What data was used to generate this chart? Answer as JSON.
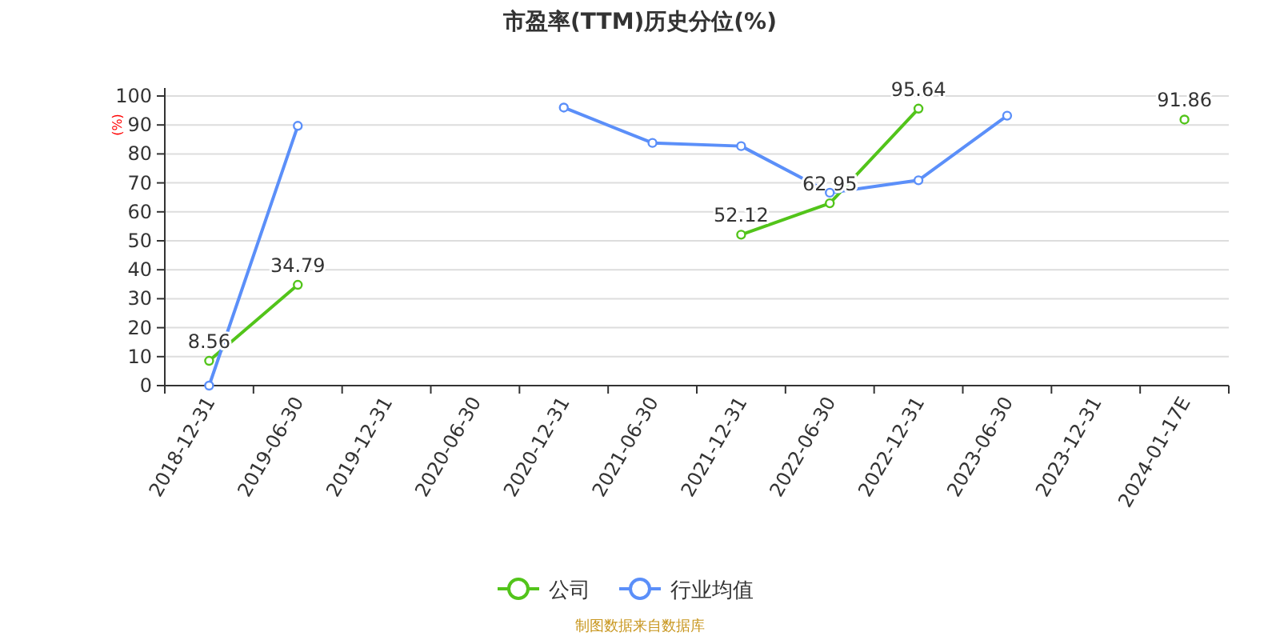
{
  "chart_data": {
    "type": "line",
    "title": "市盈率(TTM)历史分位(%)",
    "ylabel": "(%)",
    "categories": [
      "2018-12-31",
      "2019-06-30",
      "2019-12-31",
      "2020-06-30",
      "2020-12-31",
      "2021-06-30",
      "2021-12-31",
      "2022-06-30",
      "2022-12-31",
      "2023-06-30",
      "2023-12-31",
      "2024-01-17E"
    ],
    "series": [
      {
        "name": "公司",
        "color": "#52c41a",
        "values": [
          8.56,
          34.79,
          null,
          null,
          null,
          null,
          52.12,
          62.95,
          95.64,
          null,
          null,
          91.86
        ],
        "value_labels": [
          "8.56",
          "34.79",
          null,
          null,
          null,
          null,
          "52.12",
          "62.95",
          "95.64",
          null,
          null,
          "91.86"
        ]
      },
      {
        "name": "行业均值",
        "color": "#5b8ff9",
        "values": [
          0,
          89.7,
          null,
          null,
          96,
          83.8,
          82.7,
          66.6,
          70.9,
          93.2,
          null,
          null
        ]
      }
    ],
    "ylim": [
      0,
      100
    ],
    "yticks": [
      0,
      10,
      20,
      30,
      40,
      50,
      60,
      70,
      80,
      90,
      100
    ],
    "grid": "y",
    "marker": "circle",
    "line_style": "solid",
    "legend": "bottom",
    "annotations": [
      "制图数据来自数据库"
    ]
  }
}
